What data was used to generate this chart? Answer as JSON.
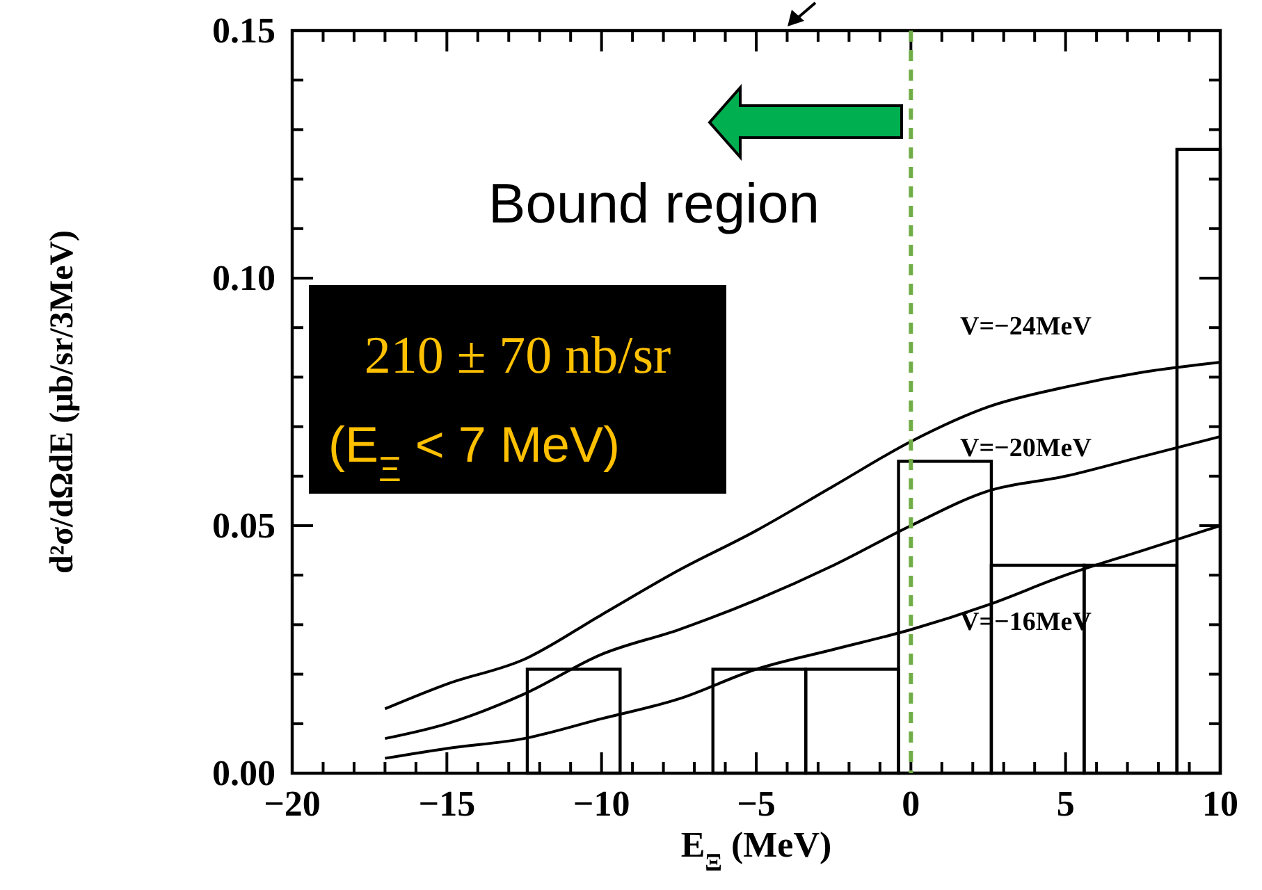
{
  "chart_data": {
    "type": "histogram",
    "xlabel": "E$_{Ξ}$  (MeV)",
    "ylabel": "d²σ/dΩdE (μb/sr/3MeV)",
    "xlim": [
      -20,
      10
    ],
    "ylim": [
      0,
      0.15
    ],
    "xticks": [
      -20,
      {
        "value": -19,
        "label": null
      },
      {
        "value": -18,
        "label": null
      },
      {
        "value": -17,
        "label": null
      },
      {
        "value": -16,
        "label": null
      },
      -15,
      {
        "value": -14,
        "label": null
      },
      {
        "value": -13,
        "label": null
      },
      {
        "value": -12,
        "label": null
      },
      {
        "value": -11,
        "label": null
      },
      -10,
      {
        "value": -9,
        "label": null
      },
      {
        "value": -8,
        "label": null
      },
      {
        "value": -7,
        "label": null
      },
      {
        "value": -6,
        "label": null
      },
      -5,
      {
        "value": -4,
        "label": null
      },
      {
        "value": -3,
        "label": null
      },
      {
        "value": -2,
        "label": null
      },
      {
        "value": -1,
        "label": null
      },
      0,
      {
        "value": 1,
        "label": null
      },
      {
        "value": 2,
        "label": null
      },
      {
        "value": 3,
        "label": null
      },
      {
        "value": 4,
        "label": null
      },
      5,
      {
        "value": 6,
        "label": null
      },
      {
        "value": 7,
        "label": null
      },
      {
        "value": 8,
        "label": null
      },
      {
        "value": 9,
        "label": null
      },
      10
    ],
    "yticks": [
      {
        "value": 0,
        "label": "0.00"
      },
      {
        "value": 0.01,
        "label": null
      },
      {
        "value": 0.02,
        "label": null
      },
      {
        "value": 0.03,
        "label": null
      },
      {
        "value": 0.04,
        "label": null
      },
      {
        "value": 0.05,
        "label": "0.05"
      },
      {
        "value": 0.06,
        "label": null
      },
      {
        "value": 0.07,
        "label": null
      },
      {
        "value": 0.08,
        "label": null
      },
      {
        "value": 0.09,
        "label": null
      },
      {
        "value": 0.1,
        "label": "0.10"
      },
      {
        "value": 0.11,
        "label": null
      },
      {
        "value": 0.12,
        "label": null
      },
      {
        "value": 0.13,
        "label": null
      },
      {
        "value": 0.14,
        "label": null
      },
      {
        "value": 0.15,
        "label": "0.15"
      }
    ],
    "series": [
      {
        "color": "#000000",
        "bins": [
          -12.4,
          -9.4,
          -6.4,
          -3.4,
          -0.4,
          2.6,
          5.6,
          8.6,
          10
        ],
        "values": [
          0.021,
          0,
          0.021,
          0.021,
          0.063,
          0.042,
          0.042,
          0.126
        ]
      },
      {
        "type": "line",
        "name": "V=−24MeV",
        "color": "#000000",
        "x": [
          -17,
          -15,
          -12.5,
          -10,
          -7.5,
          -5,
          -2.5,
          0,
          2.5,
          5,
          7.5,
          10
        ],
        "values": [
          0.013,
          0.018,
          0.023,
          0.032,
          0.041,
          0.049,
          0.058,
          0.067,
          0.074,
          0.078,
          0.081,
          0.083
        ]
      },
      {
        "type": "line",
        "name": "V=−20MeV",
        "color": "#000000",
        "x": [
          -17,
          -15,
          -12.5,
          -10,
          -7.5,
          -5,
          -2.5,
          0,
          2.5,
          5,
          7.5,
          10
        ],
        "values": [
          0.007,
          0.01,
          0.016,
          0.024,
          0.029,
          0.035,
          0.042,
          0.05,
          0.057,
          0.06,
          0.064,
          0.068
        ]
      },
      {
        "type": "line",
        "name": "V=−16MeV",
        "color": "#000000",
        "x": [
          -17,
          -15,
          -12.5,
          -10,
          -7.5,
          -5,
          -2.5,
          0,
          2.5,
          5,
          7.5,
          10
        ],
        "values": [
          0.003,
          0.005,
          0.007,
          0.011,
          0.015,
          0.021,
          0.025,
          0.029,
          0.034,
          0.04,
          0.045,
          0.05
        ]
      }
    ],
    "ref_lines": [
      {
        "axis": "x",
        "value": 0,
        "color": "#70ad47",
        "line_style": "dashed"
      }
    ],
    "annotations": [
      "Bound region",
      "210 ± 70 nb/sr",
      "(E$_{Ξ}$ < 7 MeV)"
    ]
  }
}
